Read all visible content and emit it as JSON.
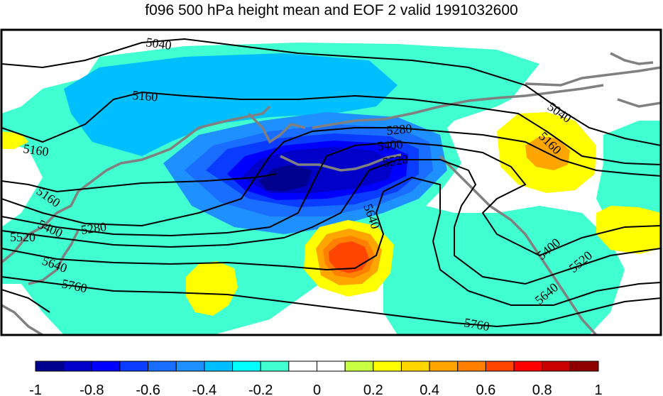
{
  "title": "f096 500 hPa height mean and EOF 2 valid 1991032600",
  "contour_labels": {
    "l5040a": "5040",
    "l5160a": "5160",
    "l5160b": "5160",
    "l5160c": "5160",
    "l5280a": "5280",
    "l5280b": "5280",
    "l5400a": "5400",
    "l5400b": "5400",
    "l5520a": "5520",
    "l5520b": "5520",
    "l5640a": "5640",
    "l5640b": "5640",
    "l5760a": "5760",
    "l5760b": "5760",
    "l5040b": "5040",
    "l5160d": "5160",
    "l5400c": "5400",
    "l5520c": "5520",
    "l5640c": "5640"
  },
  "colorbar": {
    "colors": [
      "#00008f",
      "#0000c8",
      "#0000ff",
      "#0a3cff",
      "#1a6eff",
      "#1e90ff",
      "#00bfff",
      "#00ffff",
      "#40ffd0",
      "#ffffff",
      "#ffffff",
      "#c8ff40",
      "#ffff00",
      "#ffd700",
      "#ffa500",
      "#ff7f00",
      "#ff4500",
      "#ff0000",
      "#c80000",
      "#8f0000"
    ],
    "labels": [
      "-1",
      "-0.8",
      "-0.6",
      "-0.4",
      "-0.2",
      "0",
      "0.2",
      "0.4",
      "0.6",
      "0.8",
      "1"
    ]
  }
}
